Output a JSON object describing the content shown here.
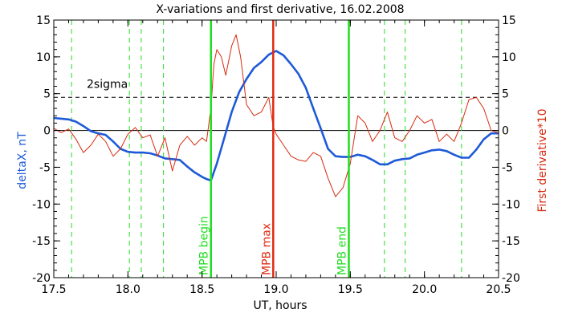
{
  "chart_data": {
    "type": "line",
    "title": "X-variations and first derivative, 16.02.2008",
    "xlabel": "UT, hours",
    "ylabel_left": "deltaX, nT",
    "ylabel_right": "First derivative*10",
    "xlim": [
      17.5,
      20.5
    ],
    "ylim": [
      -20,
      15
    ],
    "x_ticks": [
      "17.5",
      "18.0",
      "18.5",
      "19.0",
      "19.5",
      "20.0",
      "20.5"
    ],
    "y_ticks": [
      "-20",
      "-15",
      "-10",
      "-5",
      "0",
      "5",
      "10",
      "15"
    ],
    "sigma_label": "2sigma",
    "sigma_level": 4.5,
    "zero_level": 0,
    "colors": {
      "deltaX": "#1e5ad8",
      "derivative": "#d62a10",
      "markers": "#22dd22",
      "max_marker": "#e02a10",
      "axis": "#000000"
    },
    "markers": [
      {
        "x": 18.56,
        "label": "MPB begin",
        "color": "#22dd22"
      },
      {
        "x": 18.98,
        "label": "MPB max",
        "color": "#e02a10"
      },
      {
        "x": 19.49,
        "label": "MPB end",
        "color": "#22dd22"
      }
    ],
    "dashed_verticals": [
      17.62,
      18.01,
      18.09,
      18.24,
      19.73,
      19.87,
      20.25
    ],
    "series": [
      {
        "name": "deltaX",
        "color": "#1e5ad8",
        "x": [
          17.5,
          17.55,
          17.6,
          17.65,
          17.7,
          17.75,
          17.8,
          17.85,
          17.9,
          17.95,
          18.0,
          18.05,
          18.1,
          18.15,
          18.2,
          18.25,
          18.3,
          18.35,
          18.4,
          18.45,
          18.5,
          18.53,
          18.56,
          18.6,
          18.65,
          18.7,
          18.75,
          18.8,
          18.85,
          18.9,
          18.95,
          19.0,
          19.05,
          19.1,
          19.15,
          19.2,
          19.25,
          19.3,
          19.35,
          19.4,
          19.45,
          19.5,
          19.55,
          19.6,
          19.65,
          19.7,
          19.75,
          19.8,
          19.85,
          19.9,
          19.95,
          20.0,
          20.05,
          20.1,
          20.15,
          20.2,
          20.25,
          20.3,
          20.35,
          20.4,
          20.45,
          20.5
        ],
        "values": [
          1.7,
          1.6,
          1.5,
          1.2,
          0.6,
          -0.1,
          -0.4,
          -0.6,
          -1.5,
          -2.5,
          -2.9,
          -3.0,
          -3.0,
          -3.1,
          -3.4,
          -3.8,
          -3.9,
          -4.0,
          -4.9,
          -5.7,
          -6.3,
          -6.6,
          -6.8,
          -4.5,
          -1.0,
          2.5,
          5.2,
          7.0,
          8.5,
          9.3,
          10.3,
          10.8,
          10.2,
          9.0,
          7.7,
          5.8,
          3.0,
          0.3,
          -2.5,
          -3.5,
          -3.6,
          -3.6,
          -3.3,
          -3.5,
          -4.0,
          -4.6,
          -4.6,
          -4.1,
          -3.9,
          -3.8,
          -3.3,
          -3.0,
          -2.7,
          -2.6,
          -2.8,
          -3.3,
          -3.7,
          -3.7,
          -2.6,
          -1.2,
          -0.4,
          -0.4
        ]
      },
      {
        "name": "First derivative*10",
        "color": "#d62a10",
        "x": [
          17.5,
          17.55,
          17.6,
          17.65,
          17.7,
          17.75,
          17.8,
          17.85,
          17.9,
          17.95,
          18.0,
          18.05,
          18.1,
          18.15,
          18.2,
          18.25,
          18.3,
          18.35,
          18.4,
          18.45,
          18.5,
          18.53,
          18.56,
          18.58,
          18.6,
          18.63,
          18.66,
          18.7,
          18.73,
          18.76,
          18.8,
          18.85,
          18.9,
          18.95,
          18.98,
          19.0,
          19.05,
          19.1,
          19.15,
          19.2,
          19.25,
          19.3,
          19.35,
          19.4,
          19.45,
          19.5,
          19.55,
          19.6,
          19.65,
          19.7,
          19.75,
          19.8,
          19.85,
          19.9,
          19.95,
          20.0,
          20.05,
          20.1,
          20.15,
          20.2,
          20.25,
          20.3,
          20.35,
          20.4,
          20.45,
          20.5
        ],
        "values": [
          0.3,
          -0.3,
          0.2,
          -1.2,
          -3.0,
          -2.0,
          -0.5,
          -1.5,
          -3.5,
          -2.5,
          -0.5,
          0.4,
          -1.0,
          -0.6,
          -3.5,
          -1.0,
          -5.5,
          -2.0,
          -0.8,
          -2.0,
          -1.0,
          -1.5,
          3.0,
          9.0,
          11.0,
          10.0,
          7.5,
          11.5,
          13.0,
          10.0,
          3.5,
          2.0,
          2.5,
          4.5,
          0.5,
          -0.5,
          -2.0,
          -3.5,
          -4.0,
          -4.2,
          -3.0,
          -3.5,
          -6.5,
          -9.0,
          -7.8,
          -4.5,
          2.0,
          1.0,
          -1.5,
          0.0,
          2.5,
          -1.0,
          -1.5,
          0.0,
          2.0,
          1.0,
          1.5,
          -1.5,
          -0.5,
          -1.5,
          1.0,
          4.2,
          4.5,
          3.0,
          0.0,
          -0.3
        ]
      }
    ]
  }
}
